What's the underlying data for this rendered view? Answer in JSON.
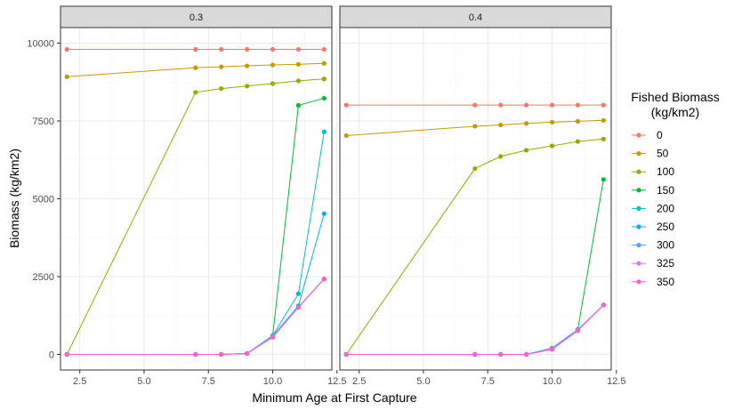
{
  "chart_data": {
    "type": "line",
    "xlabel": "Minimum Age at First Capture",
    "ylabel": "Biomass (kg/km2)",
    "xlim": [
      1.75,
      12.3
    ],
    "ylim": [
      -500,
      10500
    ],
    "x_ticks": [
      2.5,
      5.0,
      7.5,
      10.0,
      12.5
    ],
    "x_tick_labels": [
      "2.5",
      "5.0",
      "7.5",
      "10.0",
      "12.5"
    ],
    "y_ticks": [
      0,
      2500,
      5000,
      7500,
      10000
    ],
    "y_tick_labels": [
      "0",
      "2500",
      "5000",
      "7500",
      "10000"
    ],
    "grid": true,
    "legend": {
      "title_lines": [
        "Fished Biomass",
        "(kg/km2)"
      ],
      "placement": "right"
    },
    "x": [
      2,
      7,
      8,
      9,
      10,
      11,
      12
    ],
    "series": [
      {
        "name": "0",
        "color": "#F8766D"
      },
      {
        "name": "50",
        "color": "#C49A00"
      },
      {
        "name": "100",
        "color": "#99A800"
      },
      {
        "name": "150",
        "color": "#00BA38"
      },
      {
        "name": "200",
        "color": "#00BFC4"
      },
      {
        "name": "250",
        "color": "#00B0F6"
      },
      {
        "name": "300",
        "color": "#619CFF"
      },
      {
        "name": "325",
        "color": "#DB72FB"
      },
      {
        "name": "350",
        "color": "#FF61C3"
      }
    ],
    "panels": [
      {
        "label": "0.3",
        "values": [
          [
            9800,
            9800,
            9800,
            9800,
            9800,
            9800,
            9800
          ],
          [
            8920,
            9210,
            9240,
            9270,
            9300,
            9320,
            9350
          ],
          [
            0,
            8420,
            8540,
            8620,
            8700,
            8790,
            8850
          ],
          [
            0,
            0,
            0,
            30,
            600,
            8000,
            8230
          ],
          [
            0,
            0,
            0,
            30,
            600,
            1950,
            7150
          ],
          [
            0,
            0,
            0,
            30,
            590,
            1560,
            4520
          ],
          [
            0,
            0,
            0,
            30,
            570,
            1530,
            2430
          ],
          [
            0,
            0,
            0,
            30,
            560,
            1520,
            2420
          ],
          [
            0,
            0,
            0,
            30,
            550,
            1510,
            2420
          ]
        ]
      },
      {
        "label": "0.4",
        "values": [
          [
            8010,
            8010,
            8010,
            8010,
            8010,
            8010,
            8010
          ],
          [
            7030,
            7330,
            7370,
            7420,
            7460,
            7490,
            7520
          ],
          [
            0,
            5970,
            6360,
            6560,
            6700,
            6840,
            6920
          ],
          [
            0,
            0,
            0,
            0,
            200,
            800,
            5620
          ],
          [
            0,
            0,
            0,
            0,
            200,
            790,
            1590
          ],
          [
            0,
            0,
            0,
            0,
            200,
            790,
            1590
          ],
          [
            0,
            0,
            0,
            0,
            190,
            780,
            1590
          ],
          [
            0,
            0,
            0,
            0,
            170,
            770,
            1590
          ],
          [
            0,
            0,
            0,
            0,
            160,
            760,
            1590
          ]
        ]
      }
    ]
  }
}
